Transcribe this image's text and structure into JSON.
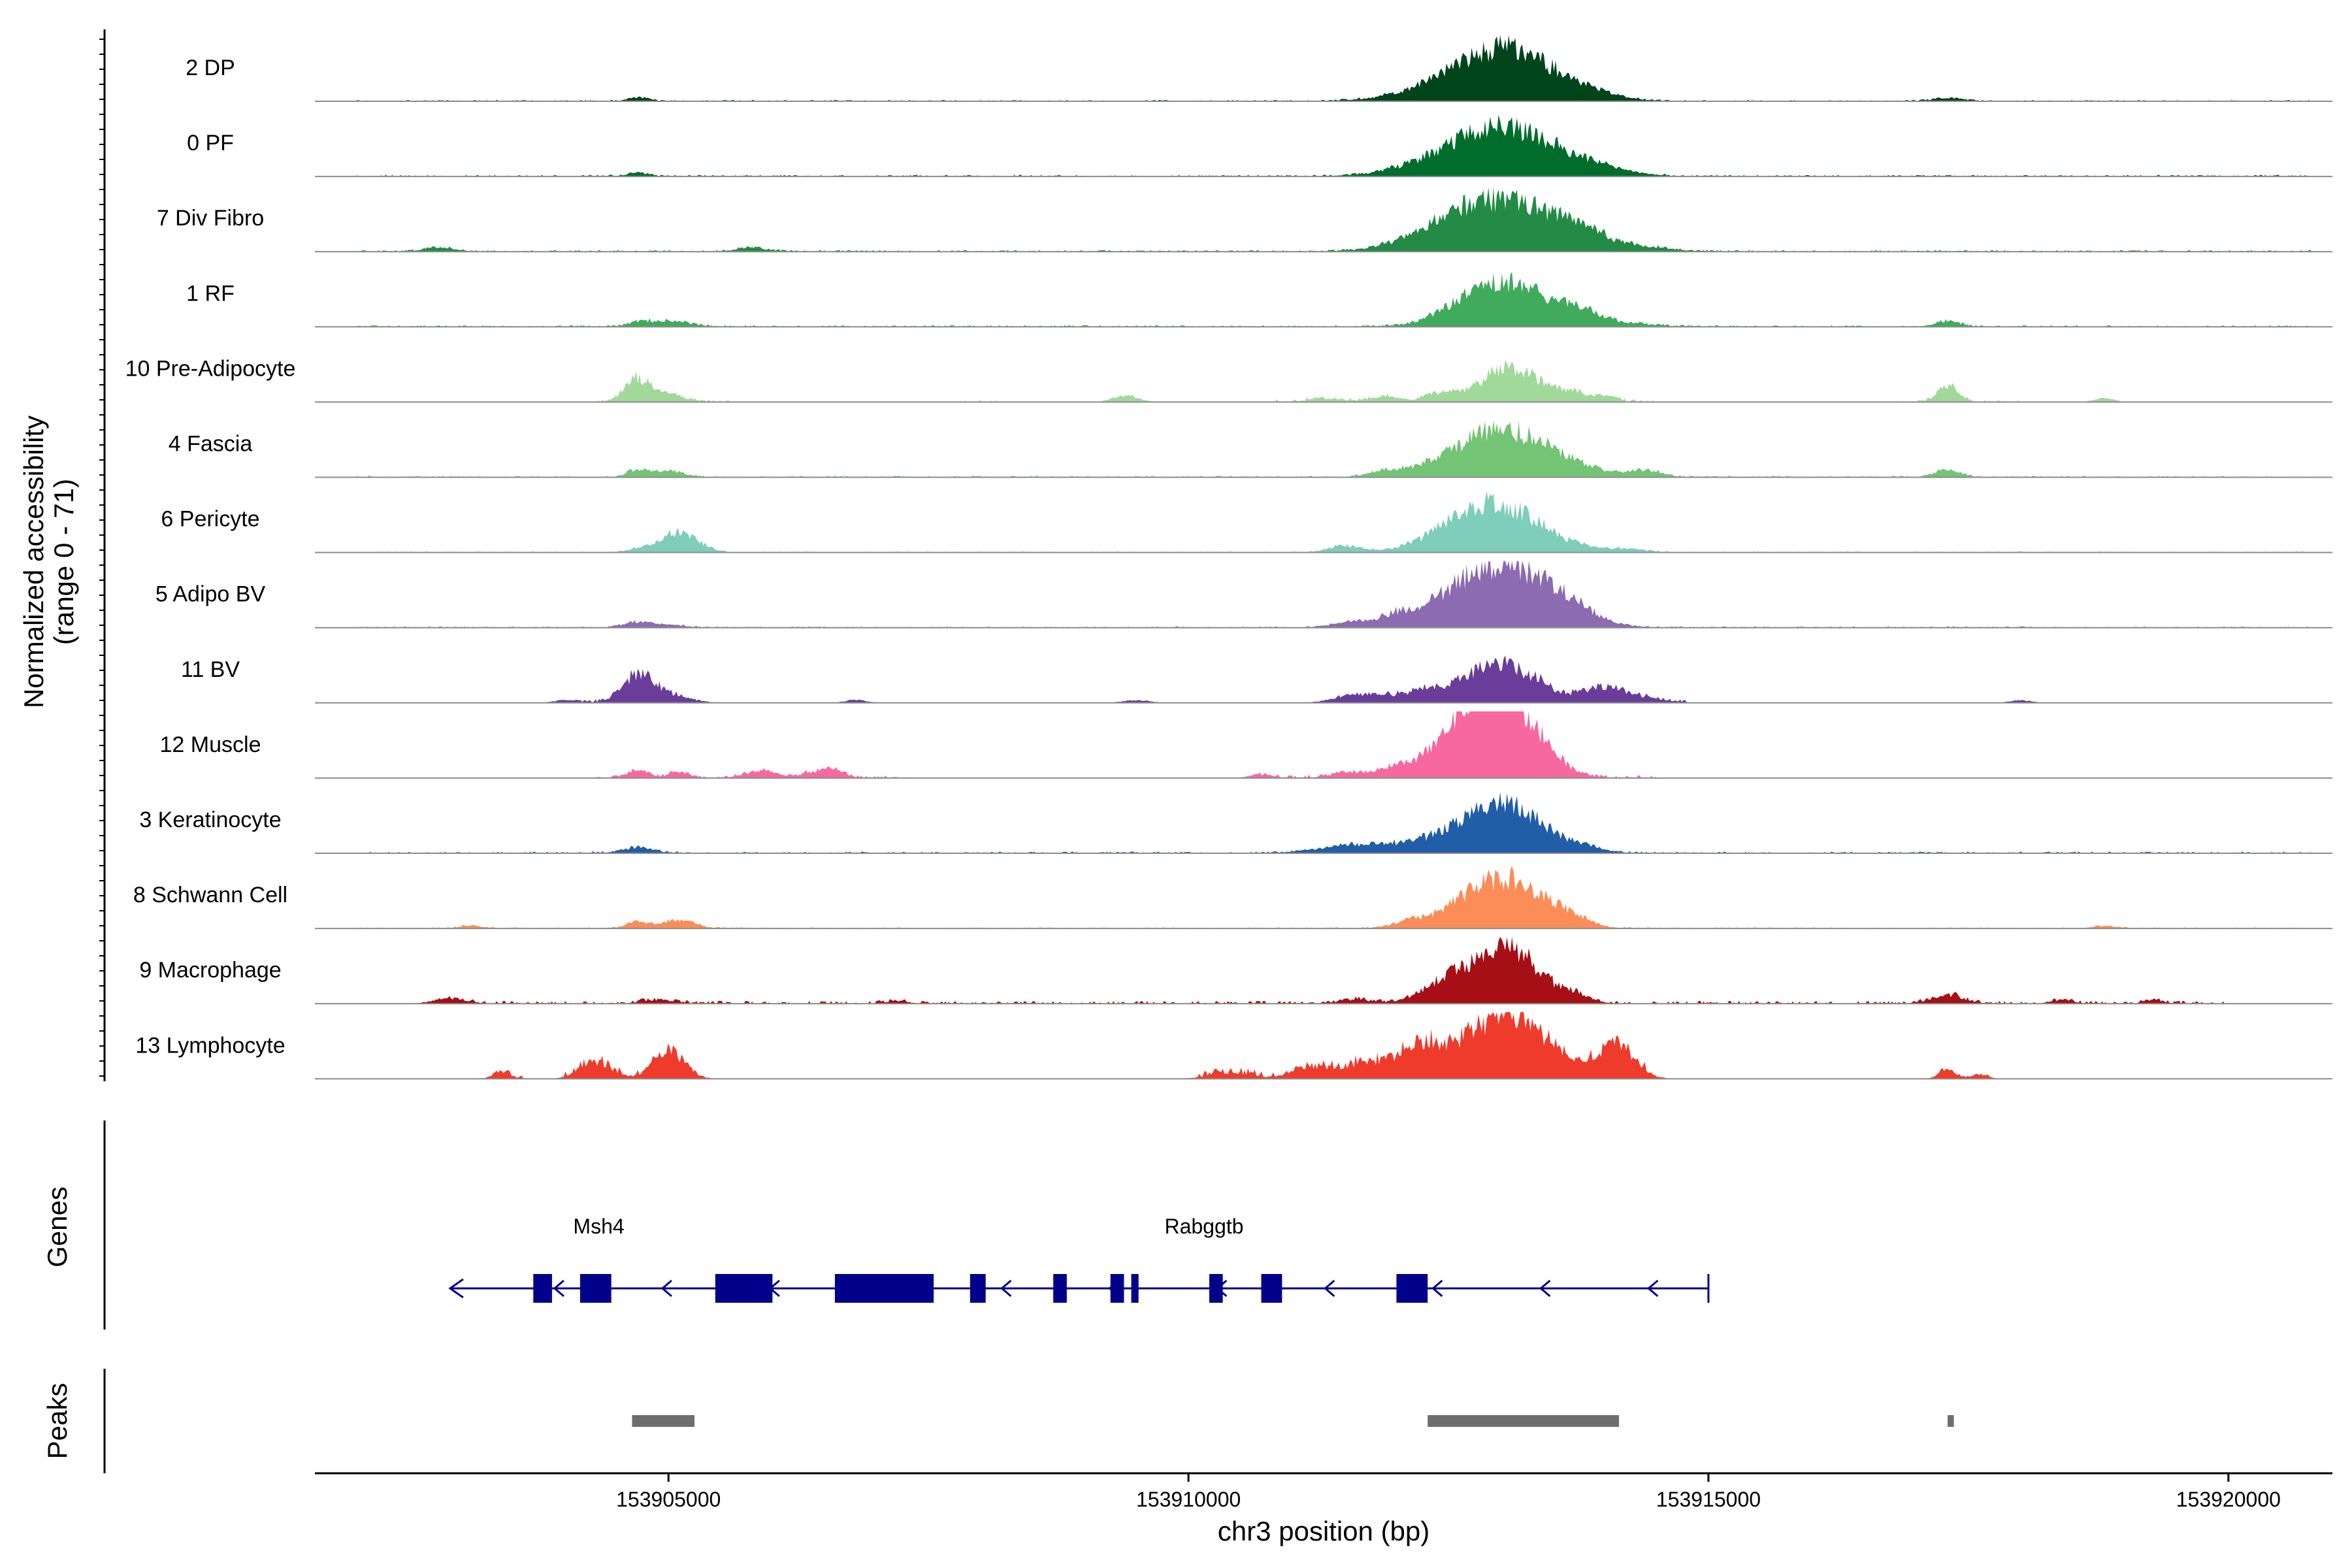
{
  "colors": {
    "axis": "#000000",
    "baseline": "#8c8c8c",
    "gene": "#00008B",
    "peak": "#6e6e6e",
    "tick_text": "#333333"
  },
  "chart_data": {
    "type": "area",
    "x_axis": {
      "label": "chr3 position (bp)",
      "range": [
        153901600,
        153921000
      ],
      "ticks": [
        153905000,
        153910000,
        153915000,
        153920000
      ],
      "tick_labels": [
        "153905000",
        "153910000",
        "153915000",
        "153920000"
      ]
    },
    "y_axis": {
      "label_line1": "Normalized accessibility",
      "label_line2": "(range 0 - 71)",
      "range": [
        0,
        71
      ]
    },
    "tracks": [
      {
        "name": "2 DP",
        "color": "#00441B",
        "peaks": [
          [
            153913100,
            48,
            480
          ],
          [
            153912600,
            12,
            500
          ],
          [
            153904700,
            4,
            100
          ],
          [
            153917300,
            3,
            150
          ],
          [
            153914000,
            2,
            200
          ]
        ],
        "islands": [
          [
            153902000,
            153920800,
            0.7
          ]
        ]
      },
      {
        "name": "0 PF",
        "color": "#006D2C",
        "peaks": [
          [
            153913100,
            45,
            500
          ],
          [
            153912600,
            12,
            500
          ],
          [
            153914000,
            4,
            300
          ],
          [
            153904700,
            4,
            100
          ]
        ],
        "islands": [
          [
            153902000,
            153920800,
            0.9
          ]
        ]
      },
      {
        "name": "7 Div Fibro",
        "color": "#238B45",
        "peaks": [
          [
            153913100,
            50,
            550
          ],
          [
            153912500,
            13,
            400
          ],
          [
            153913800,
            10,
            150
          ],
          [
            153902800,
            4,
            150
          ],
          [
            153905800,
            4,
            150
          ],
          [
            153914400,
            3,
            250
          ]
        ],
        "islands": [
          [
            153902000,
            153920800,
            0.9
          ]
        ]
      },
      {
        "name": "1 RF",
        "color": "#41AB5D",
        "peaks": [
          [
            153913100,
            42,
            400
          ],
          [
            153912700,
            12,
            300
          ],
          [
            153913800,
            10,
            200
          ],
          [
            153917300,
            6,
            120
          ],
          [
            153905000,
            6,
            200
          ],
          [
            153904700,
            4,
            100
          ],
          [
            153914200,
            3,
            300
          ]
        ],
        "islands": [
          [
            153902000,
            153920800,
            0.9
          ]
        ]
      },
      {
        "name": "10 Pre-Adipocyte",
        "color": "#A1D99B",
        "peaks": [
          [
            153913100,
            36,
            300
          ],
          [
            153904700,
            24,
            120
          ],
          [
            153917300,
            17,
            100
          ],
          [
            153905000,
            8,
            150
          ],
          [
            153909400,
            7,
            120
          ],
          [
            153912400,
            8,
            120
          ],
          [
            153913700,
            7,
            100
          ],
          [
            153914000,
            7,
            100
          ],
          [
            153911900,
            6,
            150
          ],
          [
            153911300,
            4,
            150
          ],
          [
            153918800,
            4,
            100
          ]
        ],
        "islands": [
          [
            153904300,
            153905600,
            1.2
          ],
          [
            153907800,
            153908200,
            1.0
          ],
          [
            153910800,
            153914500,
            1.5
          ],
          [
            153916800,
            153918000,
            1.0
          ]
        ]
      },
      {
        "name": "4 Fascia",
        "color": "#74C476",
        "peaks": [
          [
            153913100,
            44,
            400
          ],
          [
            153912600,
            14,
            400
          ],
          [
            153904700,
            8,
            100
          ],
          [
            153905000,
            6,
            150
          ],
          [
            153914400,
            7,
            150
          ],
          [
            153911900,
            5,
            150
          ],
          [
            153917300,
            8,
            120
          ],
          [
            153913800,
            6,
            250
          ]
        ],
        "islands": [
          [
            153902000,
            153920800,
            0.8
          ]
        ]
      },
      {
        "name": "6 Pericyte",
        "color": "#7FCDBB",
        "peaks": [
          [
            153913000,
            34,
            450
          ],
          [
            153912800,
            20,
            400
          ],
          [
            153905100,
            22,
            180
          ],
          [
            153911500,
            7,
            150
          ],
          [
            153904700,
            3,
            100
          ],
          [
            153914200,
            3,
            200
          ]
        ],
        "islands": [
          [
            153902000,
            153920800,
            0.6
          ]
        ]
      },
      {
        "name": "5 Adipo BV",
        "color": "#8C6BB1",
        "peaks": [
          [
            153913100,
            58,
            450
          ],
          [
            153912600,
            18,
            400
          ],
          [
            153904700,
            6,
            120
          ],
          [
            153911600,
            6,
            200
          ],
          [
            153913700,
            8,
            180
          ],
          [
            153912000,
            8,
            150
          ],
          [
            153905000,
            3,
            150
          ]
        ],
        "islands": [
          [
            153902000,
            153920800,
            0.7
          ]
        ]
      },
      {
        "name": "11 BV",
        "color": "#6A3D9A",
        "peaks": [
          [
            153913000,
            42,
            350
          ],
          [
            153904700,
            28,
            150
          ],
          [
            153905000,
            8,
            200
          ],
          [
            153914000,
            16,
            200
          ],
          [
            153912000,
            7,
            300
          ],
          [
            153911600,
            6,
            200
          ],
          [
            153912300,
            6,
            150
          ],
          [
            153914400,
            4,
            200
          ],
          [
            153918000,
            3,
            100
          ],
          [
            153904000,
            3,
            100
          ],
          [
            153906800,
            3,
            100
          ],
          [
            153909500,
            3,
            120
          ]
        ],
        "islands": [
          [
            153904000,
            153905300,
            1.5
          ],
          [
            153911400,
            153913500,
            1.5
          ],
          [
            153913600,
            153914800,
            1.5
          ]
        ]
      },
      {
        "name": "12 Muscle",
        "color": "#F768A1",
        "peaks": [
          [
            153913100,
            64,
            300
          ],
          [
            153912800,
            45,
            250
          ],
          [
            153912500,
            22,
            300
          ],
          [
            153912000,
            8,
            200
          ],
          [
            153904700,
            8,
            100
          ],
          [
            153905100,
            6,
            100
          ],
          [
            153905900,
            8,
            150
          ],
          [
            153906400,
            6,
            120
          ],
          [
            153906600,
            9,
            100
          ],
          [
            153911500,
            5,
            150
          ],
          [
            153910700,
            4,
            100
          ],
          [
            153913500,
            6,
            100
          ]
        ],
        "islands": [
          [
            153904300,
            153907300,
            1.2
          ],
          [
            153910600,
            153914500,
            1.5
          ]
        ]
      },
      {
        "name": "3 Keratinocyte",
        "color": "#225EA8",
        "peaks": [
          [
            153913100,
            40,
            350
          ],
          [
            153912700,
            18,
            400
          ],
          [
            153911900,
            6,
            450
          ],
          [
            153904700,
            6,
            150
          ],
          [
            153913800,
            4,
            200
          ],
          [
            153911500,
            4,
            300
          ]
        ],
        "islands": [
          [
            153902000,
            153920800,
            0.9
          ]
        ]
      },
      {
        "name": "8 Schwann Cell",
        "color": "#FC8D59",
        "peaks": [
          [
            153913100,
            50,
            350
          ],
          [
            153912600,
            14,
            300
          ],
          [
            153905100,
            9,
            150
          ],
          [
            153904700,
            7,
            100
          ],
          [
            153913700,
            6,
            150
          ],
          [
            153912100,
            5,
            150
          ],
          [
            153903100,
            3,
            100
          ],
          [
            153918800,
            3,
            100
          ]
        ],
        "islands": [
          [
            153902000,
            153920800,
            0.6
          ]
        ]
      },
      {
        "name": "9 Macrophage",
        "color": "#A50F15",
        "peaks": [
          [
            153913100,
            55,
            280
          ],
          [
            153912500,
            18,
            250
          ],
          [
            153912700,
            10,
            300
          ],
          [
            153913700,
            8,
            150
          ],
          [
            153917300,
            9,
            150
          ],
          [
            153902900,
            6,
            150
          ],
          [
            153904900,
            4,
            150
          ],
          [
            153911600,
            4,
            150
          ],
          [
            153918400,
            4,
            100
          ],
          [
            153919300,
            3,
            100
          ],
          [
            153907200,
            3,
            100
          ]
        ],
        "islands": [
          [
            153902800,
            153920000,
            1.5
          ]
        ]
      },
      {
        "name": "13 Lymphocyte",
        "color": "#EF3B2C",
        "peaks": [
          [
            153913100,
            70,
            280
          ],
          [
            153914100,
            36,
            180
          ],
          [
            153912300,
            38,
            200
          ],
          [
            153905000,
            30,
            150
          ],
          [
            153904300,
            18,
            150
          ],
          [
            153912700,
            20,
            150
          ],
          [
            153913600,
            15,
            150
          ],
          [
            153911700,
            15,
            180
          ],
          [
            153911200,
            12,
            200
          ],
          [
            153912000,
            10,
            150
          ],
          [
            153910400,
            6,
            200
          ],
          [
            153903400,
            8,
            80
          ],
          [
            153917300,
            10,
            80
          ],
          [
            153917600,
            5,
            80
          ]
        ],
        "islands": [
          [
            153903300,
            153903600,
            1.5
          ],
          [
            153904000,
            153905300,
            3.0
          ],
          [
            153910100,
            153914400,
            3.5
          ],
          [
            153917200,
            153917700,
            1.0
          ]
        ]
      }
    ],
    "genes": [
      {
        "name": "Msh4",
        "strand": "-",
        "span": [
          153902900,
          153907200
        ],
        "exons": [
          [
            153903700,
            153903880
          ],
          [
            153904150,
            153904450
          ],
          [
            153905450,
            153906000
          ],
          [
            153906600,
            153907200
          ]
        ],
        "label_pos": 153904330
      },
      {
        "name": "Rabggtb",
        "strand": "-",
        "span": [
          153907200,
          153915000
        ],
        "exons": [
          [
            153907100,
            153907550
          ],
          [
            153907900,
            153908050
          ],
          [
            153908700,
            153908830
          ],
          [
            153909250,
            153909380
          ],
          [
            153909450,
            153909520
          ],
          [
            153910200,
            153910330
          ],
          [
            153910700,
            153910900
          ],
          [
            153912000,
            153912300
          ]
        ],
        "label_pos": 153910150
      }
    ],
    "peaks": [
      [
        153904650,
        153905250
      ],
      [
        153912300,
        153914140
      ],
      [
        153917300,
        153917360
      ]
    ],
    "side_labels": [
      "Genes",
      "Peaks"
    ]
  }
}
